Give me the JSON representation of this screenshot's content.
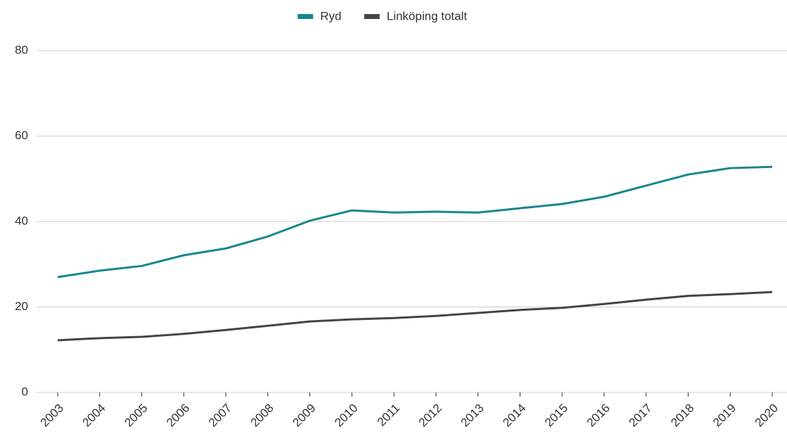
{
  "chart_data": {
    "type": "line",
    "categories": [
      "2003",
      "2004",
      "2005",
      "2006",
      "2007",
      "2008",
      "2009",
      "2010",
      "2011",
      "2012",
      "2013",
      "2014",
      "2015",
      "2016",
      "2017",
      "2018",
      "2019",
      "2020"
    ],
    "series": [
      {
        "name": "Ryd",
        "color": "#17868f",
        "values": [
          27.0,
          28.5,
          29.6,
          32.1,
          33.7,
          36.5,
          40.2,
          42.6,
          42.1,
          42.3,
          42.1,
          43.1,
          44.1,
          45.8,
          48.4,
          51.0,
          52.5,
          52.8
        ]
      },
      {
        "name": "Linköping totalt",
        "color": "#444444",
        "values": [
          12.2,
          12.7,
          13.0,
          13.7,
          14.6,
          15.6,
          16.6,
          17.1,
          17.4,
          17.9,
          18.6,
          19.3,
          19.8,
          20.7,
          21.7,
          22.6,
          23.0,
          23.5
        ]
      }
    ],
    "ylim": [
      0,
      80
    ],
    "yticks": [
      0,
      20,
      40,
      60,
      80
    ],
    "grid": true,
    "legend": "top"
  }
}
